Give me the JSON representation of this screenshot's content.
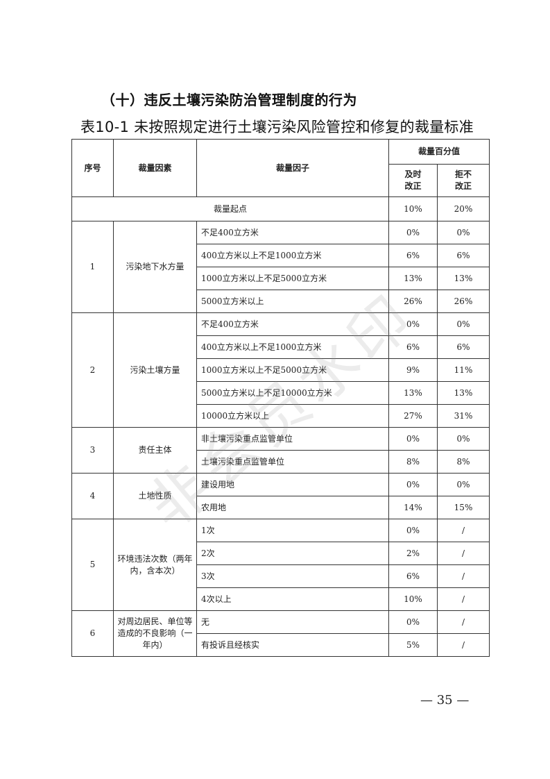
{
  "section_title": "（十）违反土壤污染防治管理制度的行为",
  "table_caption": "表10-1  未按照规定进行土壤污染风险管控和修复的裁量标准",
  "headers": {
    "seq": "序号",
    "factor": "裁量因素",
    "item": "裁量因子",
    "percent": "裁量百分值",
    "timely": "及时改正",
    "refuse": "拒不改正"
  },
  "start": {
    "label": "裁量起点",
    "timely": "10%",
    "refuse": "20%"
  },
  "groups": [
    {
      "id": "1",
      "factor": "污染地下水方量",
      "items": [
        {
          "label": "不足400立方米",
          "timely": "0%",
          "refuse": "0%"
        },
        {
          "label": "400立方米以上不足1000立方米",
          "timely": "6%",
          "refuse": "6%"
        },
        {
          "label": "1000立方米以上不足5000立方米",
          "timely": "13%",
          "refuse": "13%"
        },
        {
          "label": "5000立方米以上",
          "timely": "26%",
          "refuse": "26%"
        }
      ]
    },
    {
      "id": "2",
      "factor": "污染土壤方量",
      "items": [
        {
          "label": "不足400立方米",
          "timely": "0%",
          "refuse": "0%"
        },
        {
          "label": "400立方米以上不足1000立方米",
          "timely": "6%",
          "refuse": "6%"
        },
        {
          "label": "1000立方米以上不足5000立方米",
          "timely": "9%",
          "refuse": "11%"
        },
        {
          "label": "5000立方米以上不足10000立方米",
          "timely": "13%",
          "refuse": "13%"
        },
        {
          "label": "10000立方米以上",
          "timely": "27%",
          "refuse": "31%"
        }
      ]
    },
    {
      "id": "3",
      "factor": "责任主体",
      "items": [
        {
          "label": "非土壤污染重点监管单位",
          "timely": "0%",
          "refuse": "0%"
        },
        {
          "label": "土壤污染重点监管单位",
          "timely": "8%",
          "refuse": "8%"
        }
      ]
    },
    {
      "id": "4",
      "factor": "土地性质",
      "items": [
        {
          "label": "建设用地",
          "timely": "0%",
          "refuse": "0%"
        },
        {
          "label": "农用地",
          "timely": "14%",
          "refuse": "15%"
        }
      ]
    },
    {
      "id": "5",
      "factor": "环境违法次数（两年内，含本次）",
      "items": [
        {
          "label": "1次",
          "timely": "0%",
          "refuse": "/"
        },
        {
          "label": "2次",
          "timely": "2%",
          "refuse": "/"
        },
        {
          "label": "3次",
          "timely": "6%",
          "refuse": "/"
        },
        {
          "label": "4次以上",
          "timely": "10%",
          "refuse": "/"
        }
      ]
    },
    {
      "id": "6",
      "factor": "对周边居民、单位等造成的不良影响（一年内）",
      "items": [
        {
          "label": "无",
          "timely": "0%",
          "refuse": "/"
        },
        {
          "label": "有投诉且经核实",
          "timely": "5%",
          "refuse": "/"
        }
      ]
    }
  ],
  "watermark": "非会员水印",
  "page_number": "— 35 —"
}
